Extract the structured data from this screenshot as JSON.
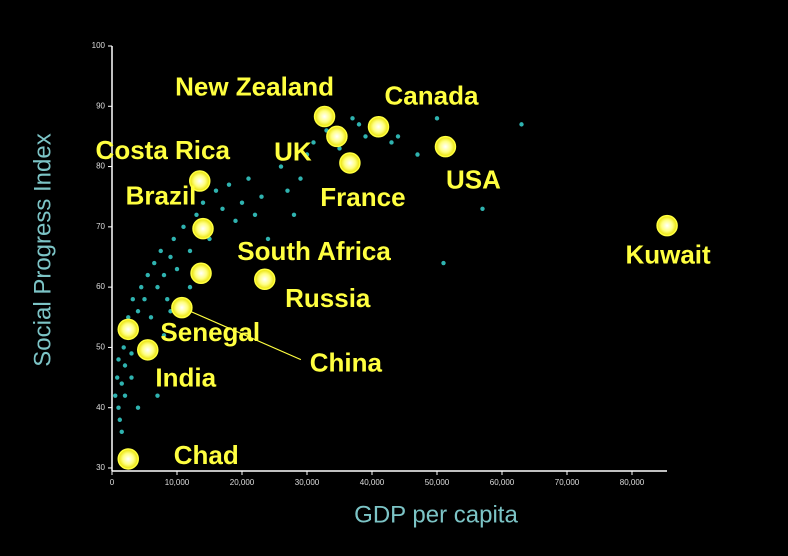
{
  "chart_data": {
    "type": "scatter",
    "xlabel": "GDP per capita",
    "ylabel": "Social Progress Index",
    "xlim": [
      0,
      86000
    ],
    "ylim": [
      29.5,
      100
    ],
    "xticks": [
      0,
      {
        "value": 10000,
        "label": "10,000"
      },
      {
        "value": 20000,
        "label": "20,000"
      },
      {
        "value": 30000,
        "label": "30,000"
      },
      {
        "value": 40000,
        "label": "40,000"
      },
      {
        "value": 50000,
        "label": "50,000"
      },
      {
        "value": 60000,
        "label": "60,000"
      },
      {
        "value": 70000,
        "label": "70,000"
      },
      {
        "value": 80000,
        "label": "80,000"
      }
    ],
    "yticks": [
      30,
      40,
      50,
      60,
      70,
      80,
      90,
      100
    ],
    "series": [
      {
        "color": "#ffff40",
        "labels": [
          "New Zealand",
          "Canada",
          "UK",
          "France",
          "USA",
          "Kuwait",
          "Costa Rica",
          "Brazil",
          "South Africa",
          "Russia",
          "Senegal",
          "China",
          "India",
          "Chad"
        ],
        "x": [
          32700,
          41000,
          34600,
          36600,
          51300,
          85400,
          13500,
          14000,
          13700,
          23500,
          2500,
          10750,
          5500,
          2500
        ],
        "values": [
          88.3,
          86.6,
          85,
          80.6,
          83.3,
          70.2,
          77.6,
          69.7,
          62.3,
          61.3,
          53,
          56.6,
          49.6,
          31.5
        ]
      },
      {
        "color": "#2fb3b0",
        "x": [
          500,
          800,
          1000,
          1200,
          1500,
          1800,
          2000,
          2200,
          2500,
          3000,
          3200,
          3500,
          4000,
          4500,
          5000,
          5500,
          6000,
          6500,
          7000,
          7500,
          8000,
          8500,
          9000,
          9500,
          10000,
          11000,
          12000,
          13000,
          14000,
          15000,
          16000,
          17000,
          18000,
          19000,
          20000,
          21000,
          22000,
          23000,
          24000,
          26000,
          27000,
          28000,
          29000,
          30000,
          31000,
          33000,
          35000,
          37000,
          38000,
          39000,
          42000,
          43000,
          44000,
          47000,
          50000,
          51000,
          57000,
          63000,
          1000,
          1500,
          2000,
          4000,
          7000,
          3000,
          6000,
          9000,
          12000,
          8000
        ],
        "values": [
          42,
          45,
          48,
          38,
          44,
          50,
          47,
          52,
          55,
          49,
          58,
          53,
          56,
          60,
          58,
          62,
          55,
          64,
          60,
          66,
          62,
          58,
          65,
          68,
          63,
          70,
          66,
          72,
          74,
          68,
          76,
          73,
          77,
          71,
          74,
          78,
          72,
          75,
          68,
          80,
          76,
          72,
          78,
          82,
          84,
          86,
          83,
          88,
          87,
          85,
          86,
          84,
          85,
          82,
          88,
          64,
          73,
          87,
          40,
          36,
          42,
          40,
          42,
          45,
          50,
          56,
          60,
          52
        ]
      }
    ]
  }
}
